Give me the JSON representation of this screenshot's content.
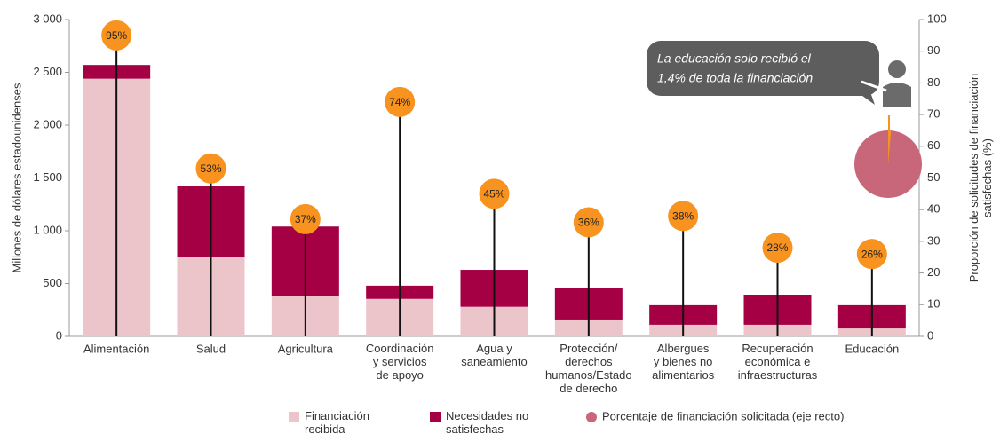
{
  "chart_data": {
    "type": "bar-lollipop",
    "categories": [
      "Alimentación",
      "Salud",
      "Agricultura",
      "Coordinación\ny servicios\nde apoyo",
      "Agua y\nsaneamiento",
      "Protección/\nderechos\nhumanos/Estado\nde derecho",
      "Albergues\ny bienes no\nalimentarios",
      "Recuperación\neconómica e\ninfraestructuras",
      "Educación"
    ],
    "series": [
      {
        "name": "Financiación\nrecibida",
        "color": "#ecc5cb",
        "values": [
          2440,
          750,
          380,
          355,
          280,
          160,
          110,
          110,
          75
        ]
      },
      {
        "name": "Necesidades no\nsatisfechas",
        "color": "#a50044",
        "values": [
          130,
          670,
          660,
          125,
          350,
          295,
          185,
          285,
          220
        ]
      },
      {
        "name": "Porcentaje de financiación solicitada (eje recto)",
        "color": "#c8677a",
        "marker_color": "#f7931e",
        "axis": "y2",
        "values": [
          95,
          53,
          37,
          74,
          45,
          36,
          38,
          28,
          26
        ],
        "value_labels": [
          "95%",
          "53%",
          "37%",
          "74%",
          "45%",
          "36%",
          "38%",
          "28%",
          "26%"
        ]
      }
    ],
    "ylabel": "Millones de dólares estadounidenses",
    "y2label": "Proporción de solicitudes de financiación\nsatisfechas (%)",
    "ylim": [
      0,
      3000
    ],
    "yticks": [
      0,
      500,
      {
        "value": 1000,
        "label": "1 000"
      },
      {
        "value": 1500,
        "label": "1 500"
      },
      {
        "value": 2000,
        "label": "2 000"
      },
      {
        "value": 2500,
        "label": "2 500"
      },
      {
        "value": 3000,
        "label": "3 000"
      }
    ],
    "y2lim": [
      0,
      100
    ],
    "y2ticks": [
      0,
      10,
      20,
      30,
      40,
      50,
      60,
      70,
      80,
      90,
      100
    ],
    "callout": {
      "lines": [
        "La educación solo recibió el",
        "1,4% de toda la financiación"
      ],
      "share": 1.4,
      "share_color": "#f7931e",
      "pie_color": "#c8677a"
    }
  }
}
